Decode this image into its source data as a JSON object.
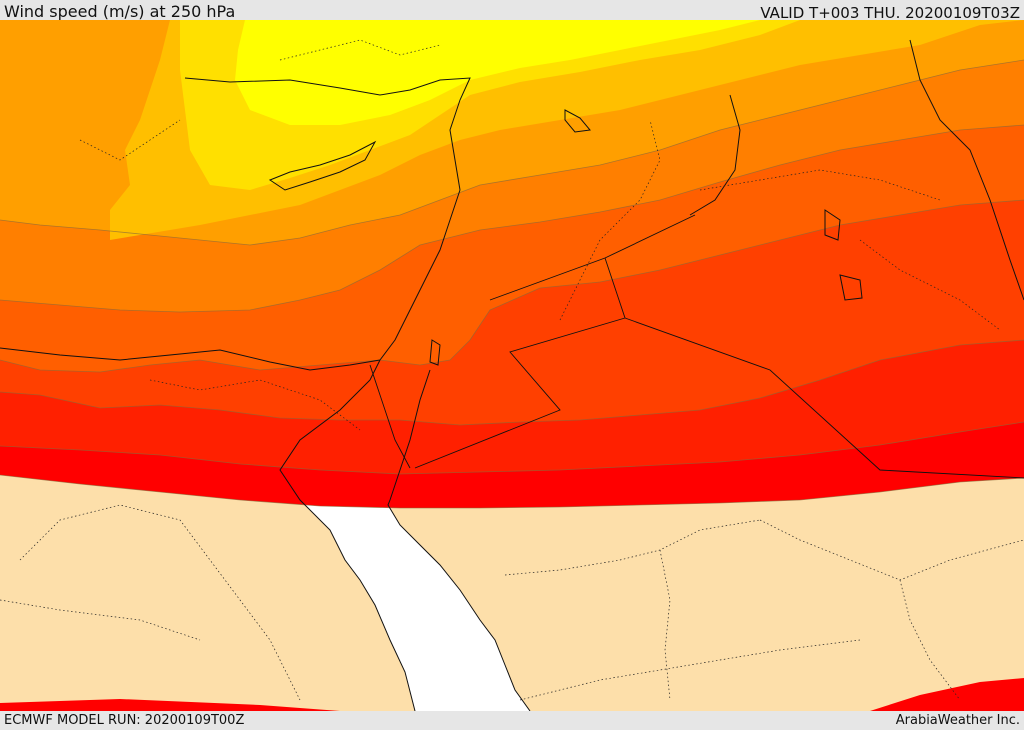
{
  "header": {
    "title": "Wind speed (m/s) at 250 hPa",
    "valid_time": "VALID T+003 THU. 20200109T03Z"
  },
  "footer": {
    "model_run": "ECMWF MODEL RUN: 20200109T00Z",
    "credit": "ArabiaWeather Inc."
  },
  "colors": {
    "land": "#fddfaa",
    "sea": "#ffffff",
    "bands": [
      "#ffff00",
      "#ffe000",
      "#ffbf00",
      "#ff9f00",
      "#ff7f00",
      "#ff5f00",
      "#ff4000",
      "#ff2000",
      "#ff0000"
    ],
    "contour_line": "#8a6a3a",
    "border": "#111111"
  }
}
